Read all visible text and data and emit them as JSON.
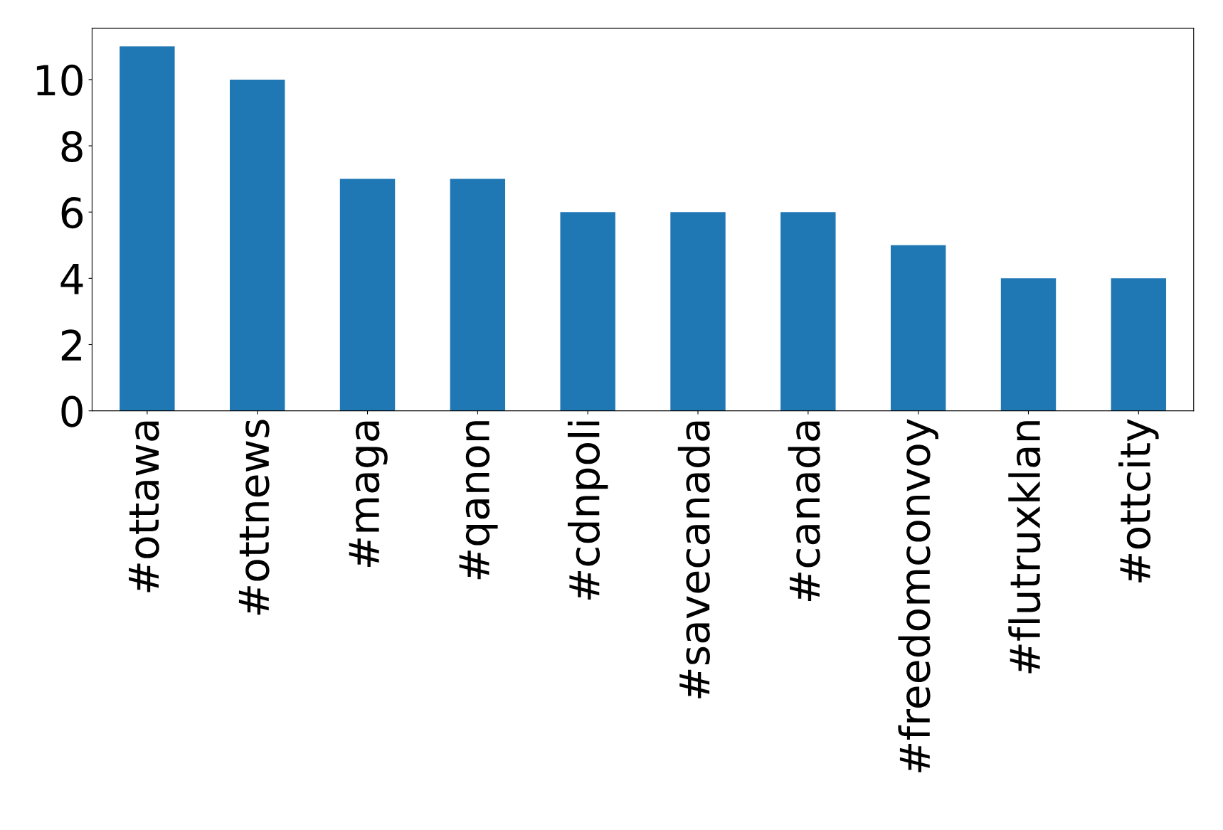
{
  "chart_data": {
    "type": "bar",
    "categories": [
      "#ottawa",
      "#ottnews",
      "#maga",
      "#qanon",
      "#cdnpoli",
      "#savecanada",
      "#canada",
      "#freedomconvoy",
      "#flutruxklan",
      "#ottcity"
    ],
    "values": [
      11,
      10,
      7,
      7,
      6,
      6,
      6,
      5,
      4,
      4
    ],
    "color": "#1f77b4",
    "ylim": [
      0,
      11.55
    ],
    "yticks": [
      0,
      2,
      4,
      6,
      8,
      10
    ],
    "grid": false
  }
}
